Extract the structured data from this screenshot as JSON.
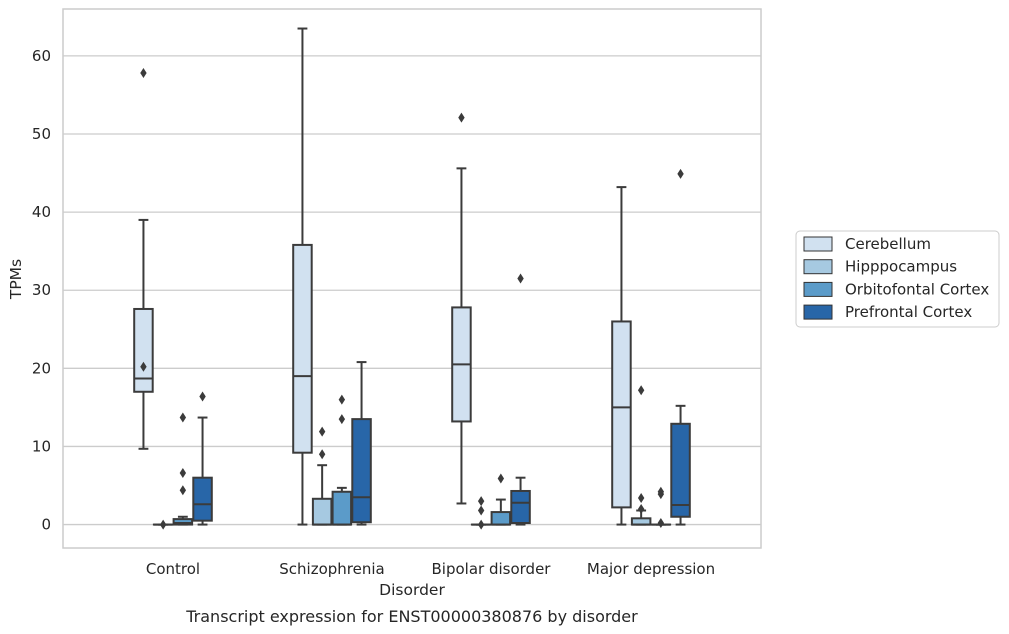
{
  "caption": "Transcript expression for ENST00000380876 by disorder",
  "chart_data": {
    "type": "box",
    "xlabel": "Disorder",
    "ylabel": "TPMs",
    "ylim": [
      -3,
      66
    ],
    "yticks": [
      0,
      10,
      20,
      30,
      40,
      50,
      60
    ],
    "grid": true,
    "legend_position": "right",
    "categories": [
      "Control",
      "Schizophrenia",
      "Bipolar disorder",
      "Major depression"
    ],
    "series": [
      {
        "name": "Cerebellum",
        "color": "#d1e1f0",
        "boxes": [
          {
            "whislo": 9.7,
            "q1": 17.0,
            "med": 18.7,
            "q3": 27.6,
            "whishi": 39.0,
            "fliers": [
              57.8,
              20.2
            ]
          },
          {
            "whislo": 0.0,
            "q1": 9.2,
            "med": 19.0,
            "q3": 35.8,
            "whishi": 63.5,
            "fliers": []
          },
          {
            "whislo": 2.7,
            "q1": 13.2,
            "med": 20.5,
            "q3": 27.8,
            "whishi": 45.6,
            "fliers": [
              52.1
            ]
          },
          {
            "whislo": 0.0,
            "q1": 2.2,
            "med": 15.0,
            "q3": 26.0,
            "whishi": 43.2,
            "fliers": []
          }
        ]
      },
      {
        "name": "Hipppocampus",
        "color": "#a6c9e1",
        "boxes": [
          {
            "whislo": 0.0,
            "q1": 0.0,
            "med": 0.0,
            "q3": 0.0,
            "whishi": 0.0,
            "fliers": [
              0.0
            ]
          },
          {
            "whislo": 0.0,
            "q1": 0.0,
            "med": 0.0,
            "q3": 3.3,
            "whishi": 7.6,
            "fliers": [
              9.0,
              11.9
            ]
          },
          {
            "whislo": 0.0,
            "q1": 0.0,
            "med": 0.0,
            "q3": 0.0,
            "whishi": 0.0,
            "fliers": [
              0.0,
              1.8,
              3.0
            ]
          },
          {
            "whislo": 0.0,
            "q1": 0.0,
            "med": 0.0,
            "q3": 0.8,
            "whishi": 1.8,
            "fliers": [
              2.0,
              3.4,
              17.2
            ]
          }
        ]
      },
      {
        "name": "Orbitofontal Cortex",
        "color": "#5b9bc9",
        "boxes": [
          {
            "whislo": 0.0,
            "q1": 0.0,
            "med": 0.2,
            "q3": 0.7,
            "whishi": 1.0,
            "fliers": [
              4.4,
              6.6,
              13.7
            ]
          },
          {
            "whislo": 0.0,
            "q1": 0.0,
            "med": 0.0,
            "q3": 4.2,
            "whishi": 4.7,
            "fliers": [
              13.5,
              16.0
            ]
          },
          {
            "whislo": 0.0,
            "q1": 0.0,
            "med": 0.0,
            "q3": 1.6,
            "whishi": 3.2,
            "fliers": [
              5.9
            ]
          },
          {
            "whislo": 0.0,
            "q1": 0.0,
            "med": 0.0,
            "q3": 0.0,
            "whishi": 0.0,
            "fliers": [
              0.2,
              3.9,
              4.2
            ]
          }
        ]
      },
      {
        "name": "Prefrontal Cortex",
        "color": "#2866a8",
        "boxes": [
          {
            "whislo": 0.0,
            "q1": 0.5,
            "med": 2.6,
            "q3": 6.0,
            "whishi": 13.7,
            "fliers": [
              16.4
            ]
          },
          {
            "whislo": 0.0,
            "q1": 0.3,
            "med": 3.5,
            "q3": 13.5,
            "whishi": 20.8,
            "fliers": []
          },
          {
            "whislo": 0.0,
            "q1": 0.2,
            "med": 2.8,
            "q3": 4.3,
            "whishi": 6.0,
            "fliers": [
              31.5
            ]
          },
          {
            "whislo": 0.0,
            "q1": 1.0,
            "med": 2.5,
            "q3": 12.9,
            "whishi": 15.2,
            "fliers": [
              44.9
            ]
          }
        ]
      }
    ]
  }
}
